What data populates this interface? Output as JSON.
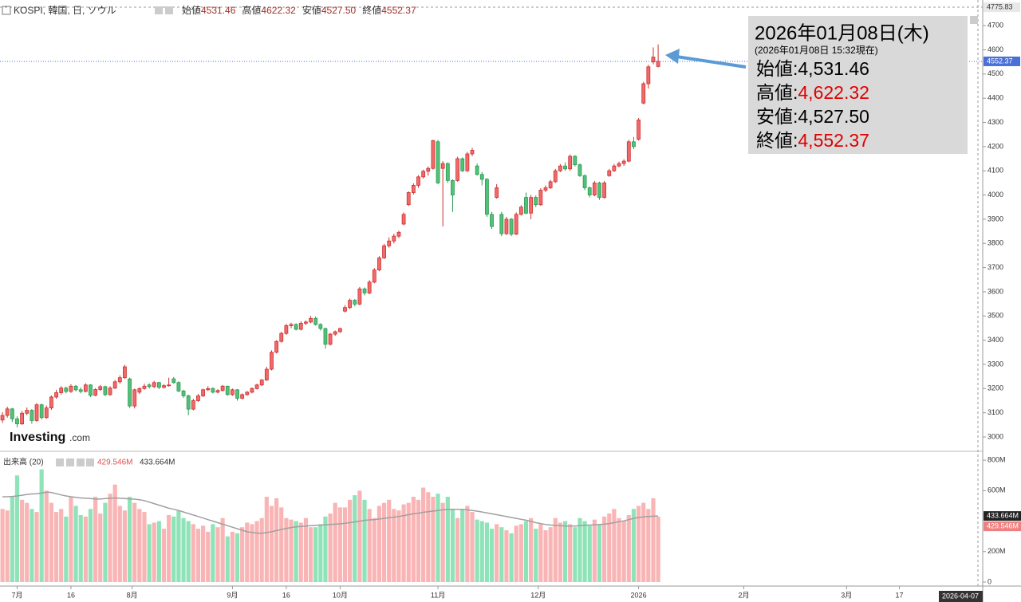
{
  "chart_data": [
    {
      "type": "candlestick",
      "title": "KOSPI, 韓国, 日, ソウル",
      "legend": [
        {
          "label": "始値",
          "value": "4531.46"
        },
        {
          "label": "高値",
          "value": "4622.32"
        },
        {
          "label": "安値",
          "value": "4527.50"
        },
        {
          "label": "終値",
          "value": "4552.37"
        }
      ],
      "tooltip": {
        "date": "2026年01月08日(木)",
        "note": "(2026年01月08日 15:32現在)",
        "rows": [
          {
            "label": "始値:",
            "value": "4,531.46",
            "color": "#000000"
          },
          {
            "label": "高値:",
            "value": "4,622.32",
            "color": "#e00000"
          },
          {
            "label": "安値:",
            "value": "4,527.50",
            "color": "#000000"
          },
          {
            "label": "終値:",
            "value": "4,552.37",
            "color": "#e00000"
          }
        ]
      },
      "watermark": [
        "Investing",
        ".com"
      ],
      "up_color": "#ef6b6b",
      "up_stroke": "#d03030",
      "down_color": "#52c27a",
      "down_stroke": "#2a9a50",
      "last_price": {
        "value": 4552.37,
        "label": "4552.37"
      },
      "top_price": {
        "value": 4775.83,
        "label": "4775.83"
      },
      "cursor_label": "2026-04-07",
      "xlim": [
        -0.5,
        200
      ],
      "ylim": [
        2944,
        4806
      ],
      "yticks": [
        3000,
        3100,
        3200,
        3300,
        3400,
        3500,
        3600,
        3700,
        3800,
        3900,
        4000,
        4100,
        4200,
        4300,
        4400,
        4500,
        4600,
        4700
      ],
      "xticks": [
        {
          "value": 3,
          "label": "7月"
        },
        {
          "value": 14,
          "label": "16"
        },
        {
          "value": 26.5,
          "label": "8月"
        },
        {
          "value": 47,
          "label": "9月"
        },
        {
          "value": 58,
          "label": "16"
        },
        {
          "value": 69,
          "label": "10月"
        },
        {
          "value": 89,
          "label": "11月"
        },
        {
          "value": 109.5,
          "label": "12月"
        },
        {
          "value": 130,
          "label": "2026"
        },
        {
          "value": 151.5,
          "label": "2月"
        },
        {
          "value": 172.5,
          "label": "3月"
        },
        {
          "value": 183.3,
          "label": "17"
        }
      ],
      "ohlc": [
        [
          3070,
          3102,
          3058,
          3089
        ],
        [
          3089,
          3125,
          3080,
          3116
        ],
        [
          3116,
          3120,
          3062,
          3075
        ],
        [
          3075,
          3085,
          3040,
          3054
        ],
        [
          3054,
          3108,
          3050,
          3098
        ],
        [
          3098,
          3122,
          3090,
          3110
        ],
        [
          3110,
          3115,
          3055,
          3068
        ],
        [
          3068,
          3140,
          3062,
          3133
        ],
        [
          3133,
          3138,
          3072,
          3080
        ],
        [
          3080,
          3130,
          3075,
          3120
        ],
        [
          3120,
          3172,
          3112,
          3165
        ],
        [
          3165,
          3195,
          3158,
          3183
        ],
        [
          3183,
          3210,
          3175,
          3202
        ],
        [
          3202,
          3208,
          3180,
          3188
        ],
        [
          3188,
          3218,
          3182,
          3210
        ],
        [
          3210,
          3215,
          3188,
          3195
        ],
        [
          3195,
          3205,
          3180,
          3188
        ],
        [
          3188,
          3222,
          3184,
          3215
        ],
        [
          3215,
          3218,
          3165,
          3172
        ],
        [
          3172,
          3202,
          3168,
          3196
        ],
        [
          3196,
          3215,
          3190,
          3208
        ],
        [
          3208,
          3212,
          3168,
          3175
        ],
        [
          3175,
          3210,
          3170,
          3202
        ],
        [
          3202,
          3236,
          3198,
          3228
        ],
        [
          3228,
          3255,
          3220,
          3245
        ],
        [
          3245,
          3298,
          3240,
          3290
        ],
        [
          3240,
          3245,
          3120,
          3128
        ],
        [
          3128,
          3200,
          3118,
          3195
        ],
        [
          3185,
          3205,
          3178,
          3200
        ],
        [
          3200,
          3220,
          3195,
          3210
        ],
        [
          3215,
          3222,
          3200,
          3208
        ],
        [
          3208,
          3232,
          3202,
          3225
        ],
        [
          3225,
          3228,
          3198,
          3205
        ],
        [
          3205,
          3218,
          3200,
          3212
        ],
        [
          3212,
          3245,
          3208,
          3215
        ],
        [
          3240,
          3248,
          3220,
          3225
        ],
        [
          3225,
          3230,
          3185,
          3190
        ],
        [
          3190,
          3195,
          3162,
          3170
        ],
        [
          3170,
          3175,
          3090,
          3115
        ],
        [
          3115,
          3158,
          3110,
          3150
        ],
        [
          3150,
          3178,
          3145,
          3170
        ],
        [
          3170,
          3200,
          3165,
          3195
        ],
        [
          3195,
          3210,
          3190,
          3200
        ],
        [
          3200,
          3205,
          3180,
          3185
        ],
        [
          3185,
          3198,
          3180,
          3192
        ],
        [
          3192,
          3215,
          3188,
          3210
        ],
        [
          3210,
          3212,
          3170,
          3175
        ],
        [
          3175,
          3200,
          3170,
          3195
        ],
        [
          3195,
          3198,
          3150,
          3160
        ],
        [
          3160,
          3180,
          3155,
          3175
        ],
        [
          3175,
          3190,
          3170,
          3185
        ],
        [
          3185,
          3205,
          3180,
          3200
        ],
        [
          3200,
          3220,
          3196,
          3215
        ],
        [
          3215,
          3240,
          3210,
          3235
        ],
        [
          3235,
          3290,
          3232,
          3280
        ],
        [
          3280,
          3358,
          3275,
          3350
        ],
        [
          3350,
          3400,
          3345,
          3395
        ],
        [
          3395,
          3435,
          3390,
          3428
        ],
        [
          3428,
          3468,
          3422,
          3460
        ],
        [
          3460,
          3472,
          3450,
          3465
        ],
        [
          3465,
          3470,
          3440,
          3445
        ],
        [
          3445,
          3478,
          3440,
          3470
        ],
        [
          3470,
          3482,
          3462,
          3475
        ],
        [
          3475,
          3500,
          3470,
          3490
        ],
        [
          3490,
          3498,
          3460,
          3465
        ],
        [
          3465,
          3470,
          3440,
          3448
        ],
        [
          3448,
          3452,
          3365,
          3383
        ],
        [
          3383,
          3430,
          3378,
          3425
        ],
        [
          3425,
          3440,
          3418,
          3435
        ],
        [
          3435,
          3452,
          3430,
          3448
        ],
        [
          3520,
          3545,
          3515,
          3535
        ],
        [
          3535,
          3572,
          3528,
          3565
        ],
        [
          3565,
          3570,
          3540,
          3549
        ],
        [
          3549,
          3620,
          3545,
          3612
        ],
        [
          3612,
          3618,
          3585,
          3595
        ],
        [
          3595,
          3648,
          3590,
          3640
        ],
        [
          3640,
          3698,
          3635,
          3690
        ],
        [
          3690,
          3748,
          3685,
          3740
        ],
        [
          3740,
          3798,
          3735,
          3790
        ],
        [
          3790,
          3825,
          3782,
          3810
        ],
        [
          3810,
          3840,
          3800,
          3830
        ],
        [
          3830,
          3852,
          3822,
          3846
        ],
        [
          3880,
          3928,
          3875,
          3920
        ],
        [
          3960,
          4015,
          3955,
          4010
        ],
        [
          4010,
          4048,
          4002,
          4040
        ],
        [
          4040,
          4082,
          4030,
          4075
        ],
        [
          4075,
          4105,
          4068,
          4098
        ],
        [
          4098,
          4118,
          4080,
          4110
        ],
        [
          4110,
          4228,
          4105,
          4225
        ],
        [
          4220,
          4228,
          4045,
          4050
        ],
        [
          4110,
          4140,
          3870,
          4130
        ],
        [
          4130,
          4135,
          4050,
          4060
        ],
        [
          4060,
          4065,
          3930,
          4000
        ],
        [
          4060,
          4158,
          4055,
          4150
        ],
        [
          4150,
          4155,
          4095,
          4100
        ],
        [
          4100,
          4178,
          4095,
          4170
        ],
        [
          4170,
          4195,
          4160,
          4185
        ],
        [
          4120,
          4130,
          4080,
          4085
        ],
        [
          4085,
          4095,
          4040,
          4065
        ],
        [
          4065,
          4070,
          3910,
          3920
        ],
        [
          3920,
          3930,
          3860,
          3870
        ],
        [
          3990,
          4045,
          3985,
          4030
        ],
        [
          3920,
          3930,
          3830,
          3840
        ],
        [
          3840,
          3910,
          3835,
          3900
        ],
        [
          3900,
          3905,
          3830,
          3838
        ],
        [
          3838,
          3928,
          3835,
          3920
        ],
        [
          3920,
          3958,
          3915,
          3950
        ],
        [
          3990,
          4010,
          3920,
          3925
        ],
        [
          3925,
          4000,
          3900,
          3990
        ],
        [
          3990,
          3998,
          3950,
          3960
        ],
        [
          3960,
          4028,
          3955,
          4020
        ],
        [
          4020,
          4040,
          4012,
          4030
        ],
        [
          4030,
          4062,
          4025,
          4055
        ],
        [
          4055,
          4108,
          4050,
          4100
        ],
        [
          4100,
          4128,
          4095,
          4120
        ],
        [
          4120,
          4135,
          4100,
          4108
        ],
        [
          4108,
          4168,
          4100,
          4160
        ],
        [
          4160,
          4165,
          4118,
          4125
        ],
        [
          4125,
          4130,
          4075,
          4080
        ],
        [
          4080,
          4085,
          4020,
          4030
        ],
        [
          4030,
          4035,
          3990,
          4000
        ],
        [
          4000,
          4058,
          3995,
          4050
        ],
        [
          4050,
          4055,
          3980,
          3990
        ],
        [
          3990,
          4058,
          3985,
          4050
        ],
        [
          4080,
          4108,
          4075,
          4100
        ],
        [
          4100,
          4128,
          4095,
          4120
        ],
        [
          4120,
          4138,
          4115,
          4130
        ],
        [
          4130,
          4148,
          4120,
          4140
        ],
        [
          4140,
          4228,
          4135,
          4220
        ],
        [
          4220,
          4240,
          4190,
          4200
        ],
        [
          4230,
          4318,
          4225,
          4310
        ],
        [
          4380,
          4468,
          4375,
          4460
        ],
        [
          4460,
          4538,
          4440,
          4530
        ],
        [
          4550,
          4610,
          4540,
          4570
        ],
        [
          4531.46,
          4622.32,
          4527.5,
          4552.37
        ]
      ]
    },
    {
      "type": "volume",
      "title": "出来高 (20)",
      "value_label": "429.546M",
      "ma_label": "433.664M",
      "up_color": "#f9b5b5",
      "down_color": "#8fe3b8",
      "ma_color": "#a0a0a0",
      "ylim": [
        0,
        853
      ],
      "yticks": [
        0,
        {
          "value": 200,
          "label": "200M"
        },
        {
          "value": 600,
          "label": "600M"
        },
        {
          "value": 800,
          "label": "800M"
        }
      ],
      "values": [
        480,
        470,
        560,
        700,
        540,
        520,
        480,
        460,
        740,
        600,
        520,
        460,
        480,
        430,
        560,
        500,
        440,
        430,
        480,
        560,
        450,
        520,
        580,
        640,
        500,
        470,
        560,
        520,
        480,
        460,
        380,
        390,
        400,
        350,
        440,
        430,
        470,
        420,
        400,
        380,
        350,
        370,
        330,
        380,
        360,
        420,
        300,
        330,
        320,
        360,
        390,
        380,
        400,
        420,
        560,
        500,
        550,
        490,
        420,
        410,
        400,
        390,
        420,
        360,
        360,
        380,
        430,
        450,
        520,
        490,
        490,
        540,
        570,
        600,
        540,
        480,
        420,
        500,
        520,
        540,
        480,
        470,
        510,
        520,
        560,
        540,
        620,
        590,
        560,
        580,
        520,
        560,
        480,
        420,
        480,
        500,
        460,
        410,
        400,
        390,
        350,
        380,
        360,
        340,
        320,
        370,
        380,
        400,
        420,
        350,
        380,
        340,
        360,
        420,
        390,
        400,
        380,
        360,
        420,
        400,
        370,
        410,
        380,
        430,
        450,
        480,
        420,
        400,
        440,
        480,
        500,
        520,
        480,
        550,
        429.546
      ],
      "ma": [
        560,
        560,
        562,
        565,
        570,
        575,
        578,
        580,
        585,
        590,
        588,
        580,
        572,
        565,
        560,
        556,
        552,
        550,
        548,
        545,
        545,
        548,
        550,
        552,
        550,
        548,
        546,
        544,
        540,
        535,
        525,
        515,
        505,
        495,
        485,
        478,
        470,
        460,
        450,
        440,
        430,
        420,
        410,
        400,
        390,
        380,
        370,
        360,
        350,
        340,
        330,
        325,
        322,
        320,
        325,
        330,
        338,
        345,
        352,
        358,
        362,
        365,
        368,
        370,
        372,
        374,
        376,
        378,
        380,
        382,
        386,
        390,
        395,
        400,
        405,
        408,
        410,
        414,
        418,
        422,
        426,
        430,
        436,
        442,
        448,
        452,
        458,
        462,
        466,
        470,
        474,
        476,
        478,
        478,
        476,
        474,
        470,
        466,
        460,
        454,
        448,
        442,
        436,
        430,
        424,
        418,
        412,
        406,
        398,
        390,
        384,
        378,
        374,
        372,
        370,
        368,
        368,
        368,
        370,
        372,
        374,
        376,
        378,
        380,
        384,
        390,
        396,
        402,
        410,
        418,
        424,
        428,
        430,
        432,
        433.664
      ]
    }
  ]
}
